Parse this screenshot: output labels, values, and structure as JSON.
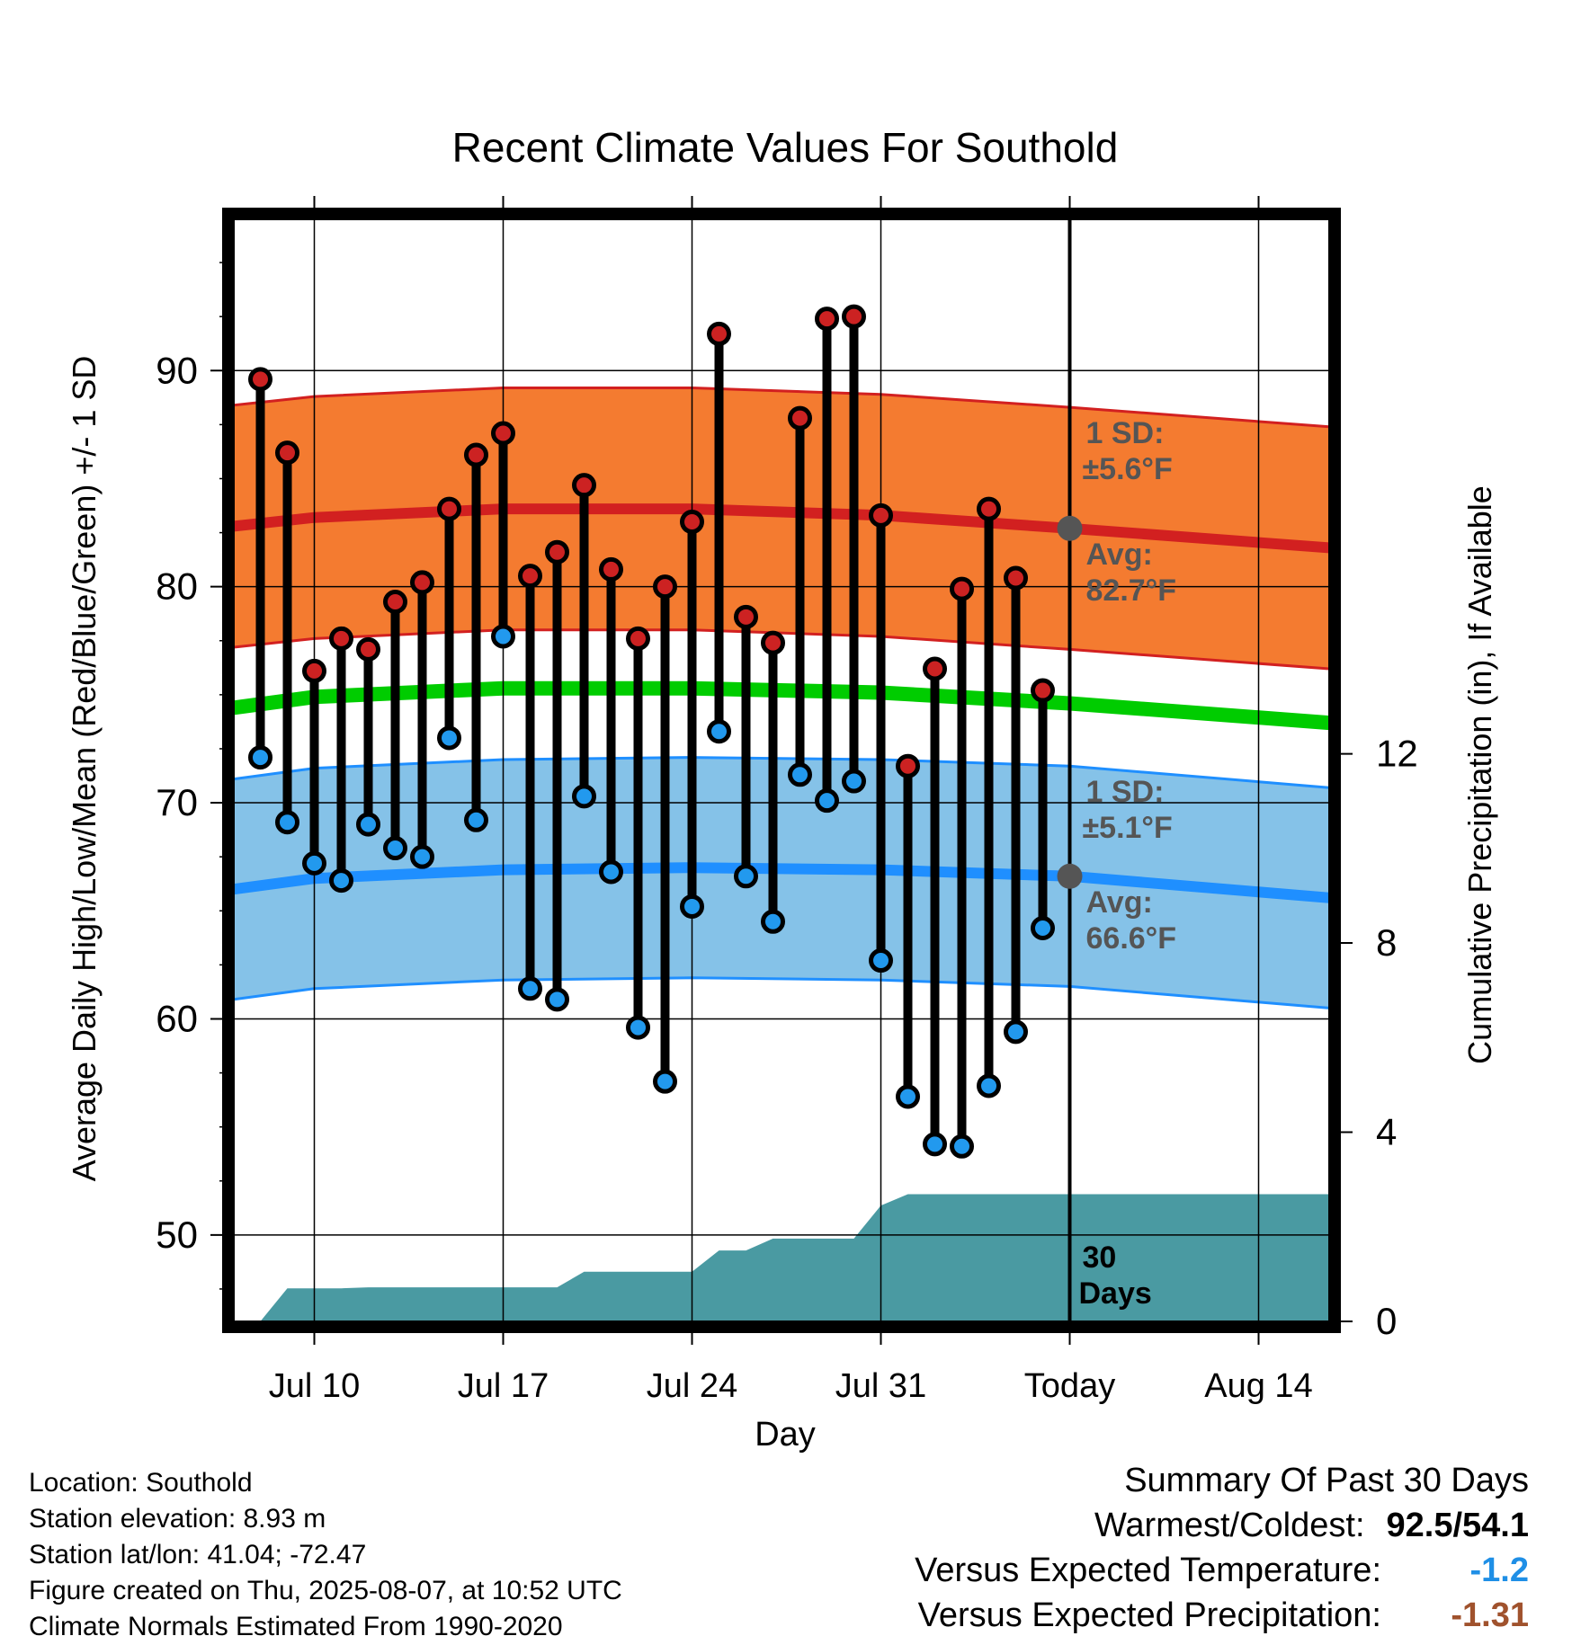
{
  "chart_data": {
    "type": "line",
    "title": "Recent Climate Values For Southold",
    "xlabel": "Day",
    "ylabel": "Average Daily High/Low/Mean (Red/Blue/Green) +/- 1 SD",
    "y2label": "Cumulative Precipitation (in), If Available",
    "ylim": [
      46,
      97
    ],
    "y2lim": [
      0,
      23.3
    ],
    "yticks": [
      50,
      60,
      70,
      80,
      90
    ],
    "y2ticks": [
      0,
      4,
      8,
      12
    ],
    "xticks": [
      "Jul 10",
      "Jul 17",
      "Jul 24",
      "Jul 31",
      "Today",
      "Aug 14"
    ],
    "today_label": "30\nDays",
    "days": [
      "Jul 8",
      "Jul 9",
      "Jul 10",
      "Jul 11",
      "Jul 12",
      "Jul 13",
      "Jul 14",
      "Jul 15",
      "Jul 16",
      "Jul 17",
      "Jul 18",
      "Jul 19",
      "Jul 20",
      "Jul 21",
      "Jul 22",
      "Jul 23",
      "Jul 24",
      "Jul 25",
      "Jul 26",
      "Jul 27",
      "Jul 28",
      "Jul 29",
      "Jul 30",
      "Jul 31",
      "Aug 1",
      "Aug 2",
      "Aug 3",
      "Aug 4",
      "Aug 5",
      "Aug 6"
    ],
    "highs": [
      89.6,
      86.2,
      76.1,
      77.6,
      77.1,
      79.3,
      80.2,
      83.6,
      86.1,
      87.1,
      80.5,
      81.6,
      84.7,
      80.8,
      77.6,
      80.0,
      83.0,
      91.7,
      78.6,
      77.4,
      87.8,
      92.4,
      92.5,
      83.3,
      71.7,
      76.2,
      79.9,
      83.6,
      80.4,
      75.2
    ],
    "lows": [
      72.1,
      69.1,
      67.2,
      66.4,
      69.0,
      67.9,
      67.5,
      73.0,
      69.2,
      77.7,
      61.4,
      60.9,
      70.3,
      66.8,
      59.6,
      57.1,
      65.2,
      73.3,
      66.6,
      64.5,
      71.3,
      70.1,
      71.0,
      62.7,
      56.4,
      54.2,
      54.1,
      56.9,
      59.4,
      64.2
    ],
    "normal_high": {
      "x": [
        "Jul 6",
        "Jul 10",
        "Jul 17",
        "Jul 24",
        "Jul 31",
        "Today",
        "Aug 17"
      ],
      "avg": [
        82.8,
        83.2,
        83.6,
        83.6,
        83.3,
        82.7,
        81.8
      ],
      "sd": 5.6,
      "label_sd": "1 SD:",
      "label_sd_val": "±5.6°F",
      "label_avg": "Avg:",
      "label_avg_val": "82.7°F"
    },
    "normal_mean": {
      "x": [
        "Jul 6",
        "Jul 10",
        "Jul 17",
        "Jul 24",
        "Jul 31",
        "Today",
        "Aug 17"
      ],
      "avg": [
        74.4,
        74.9,
        75.3,
        75.3,
        75.1,
        74.6,
        73.7
      ]
    },
    "normal_low": {
      "x": [
        "Jul 6",
        "Jul 10",
        "Jul 17",
        "Jul 24",
        "Jul 31",
        "Today",
        "Aug 17"
      ],
      "avg": [
        66.0,
        66.5,
        66.9,
        67.0,
        66.9,
        66.6,
        65.6
      ],
      "sd": 5.1,
      "label_sd": "1 SD:",
      "label_sd_val": "±5.1°F",
      "label_avg": "Avg:",
      "label_avg_val": "66.6°F"
    },
    "precip_cumulative": [
      0,
      0.7,
      0.7,
      0.7,
      0.72,
      0.72,
      0.72,
      0.72,
      0.72,
      0.72,
      0.72,
      0.72,
      1.05,
      1.05,
      1.05,
      1.05,
      1.05,
      1.5,
      1.5,
      1.75,
      1.75,
      1.75,
      1.75,
      2.45,
      2.69,
      2.69,
      2.69,
      2.69,
      2.69,
      2.69
    ],
    "colors": {
      "high_band": "#f47b30",
      "high_line": "#d22020",
      "mean_line": "#00cc00",
      "low_band": "#85c2e8",
      "low_line": "#1f8fff",
      "precip": "#4a9aa2",
      "high_marker": "#cc2222",
      "low_marker": "#2299ee",
      "label_text": "#555555"
    }
  },
  "footer": {
    "location": "Location: Southold",
    "elevation": "Station elevation: 8.93 m",
    "latlon": "Station lat/lon: 41.04; -72.47",
    "created": "Figure created on Thu, 2025-08-07, at 10:52 UTC",
    "normals": "Climate Normals Estimated From 1990-2020"
  },
  "summary": {
    "title": "Summary Of Past 30 Days",
    "warm_cold_label": "Warmest/Coldest:",
    "warm_cold_value": "92.5/54.1",
    "temp_label": "Versus Expected Temperature:",
    "temp_value": "-1.2",
    "precip_label": "Versus Expected Precipitation:",
    "precip_value": "-1.31"
  }
}
